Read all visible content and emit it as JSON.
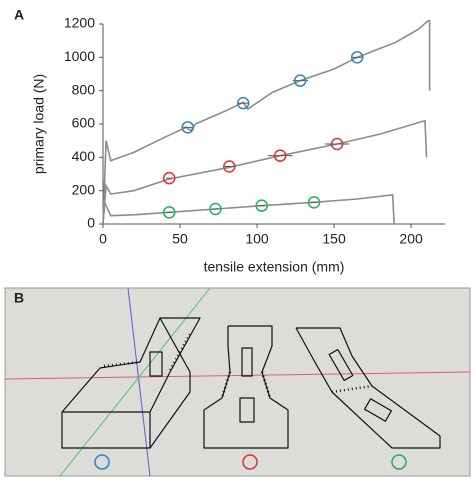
{
  "chart_data": {
    "type": "line",
    "panel_label": "A",
    "x_label": "tensile extension (mm)",
    "y_label": "primary load (N)",
    "xlim": [
      0,
      222
    ],
    "ylim": [
      0,
      1200
    ],
    "xticks": [
      0,
      50,
      100,
      150,
      200
    ],
    "yticks": [
      0,
      200,
      400,
      600,
      800,
      1000,
      1200
    ],
    "grid": false,
    "series": [
      {
        "type": "line",
        "color": "#8c8c8c",
        "x": [
          0,
          2,
          5,
          20,
          40,
          54,
          57,
          60,
          80,
          91,
          94,
          110,
          128,
          150,
          165,
          190,
          205,
          211,
          212,
          212
        ],
        "values": [
          0,
          500,
          380,
          430,
          520,
          580,
          560,
          600,
          680,
          730,
          690,
          790,
          860,
          930,
          1000,
          1090,
          1170,
          1220,
          1220,
          800
        ]
      },
      {
        "type": "line",
        "color": "#8c8c8c",
        "x": [
          0,
          2,
          5,
          20,
          43,
          82,
          115,
          152,
          180,
          209,
          210
        ],
        "values": [
          0,
          230,
          180,
          200,
          270,
          340,
          410,
          480,
          540,
          620,
          400
        ]
      },
      {
        "type": "line",
        "color": "#8c8c8c",
        "x": [
          0,
          1,
          5,
          20,
          43,
          73,
          103,
          137,
          165,
          188,
          189
        ],
        "values": [
          0,
          130,
          50,
          55,
          70,
          90,
          110,
          130,
          150,
          175,
          0
        ]
      },
      {
        "type": "scatter",
        "color": "#2e86c8",
        "x": [
          55,
          91,
          128,
          165
        ],
        "values": [
          580,
          725,
          860,
          1000
        ],
        "xerr": [
          3,
          4,
          5,
          4
        ]
      },
      {
        "type": "scatter",
        "color": "#e03030",
        "x": [
          43,
          82,
          115,
          152
        ],
        "values": [
          275,
          345,
          410,
          480
        ],
        "xerr": [
          2,
          3,
          8,
          8
        ]
      },
      {
        "type": "scatter",
        "color": "#20b060",
        "x": [
          43,
          73,
          103,
          137
        ],
        "values": [
          70,
          90,
          110,
          130
        ],
        "xerr": [
          2,
          2,
          2,
          2
        ]
      }
    ]
  },
  "panel_b": {
    "label": "B"
  }
}
